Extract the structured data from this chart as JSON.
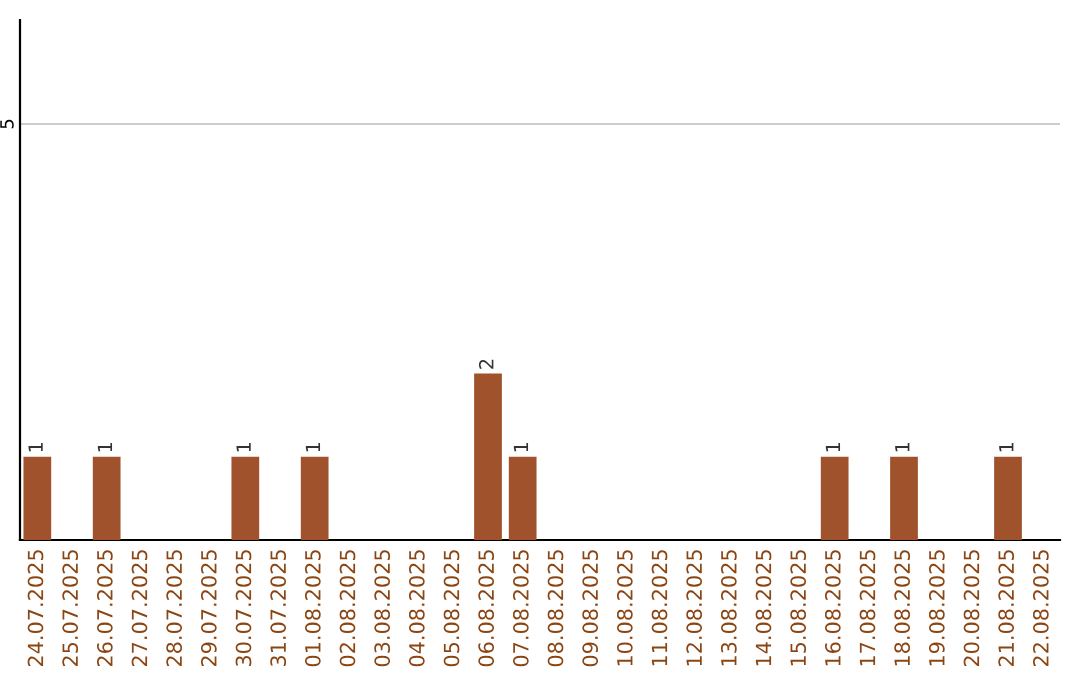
{
  "chart_data": {
    "type": "bar",
    "categories": [
      "24.07.2025",
      "25.07.2025",
      "26.07.2025",
      "27.07.2025",
      "28.07.2025",
      "29.07.2025",
      "30.07.2025",
      "31.07.2025",
      "01.08.2025",
      "02.08.2025",
      "03.08.2025",
      "04.08.2025",
      "05.08.2025",
      "06.08.2025",
      "07.08.2025",
      "08.08.2025",
      "09.08.2025",
      "10.08.2025",
      "11.08.2025",
      "12.08.2025",
      "13.08.2025",
      "14.08.2025",
      "15.08.2025",
      "16.08.2025",
      "17.08.2025",
      "18.08.2025",
      "19.08.2025",
      "20.08.2025",
      "21.08.2025",
      "22.08.2025"
    ],
    "values": [
      1,
      0,
      1,
      0,
      0,
      0,
      1,
      0,
      1,
      0,
      0,
      0,
      0,
      2,
      1,
      0,
      0,
      0,
      0,
      0,
      0,
      0,
      0,
      1,
      0,
      1,
      0,
      0,
      1,
      0
    ],
    "value_labels": [
      "1",
      null,
      "1",
      null,
      null,
      null,
      "1",
      null,
      "1",
      null,
      null,
      null,
      null,
      "2",
      "1",
      null,
      null,
      null,
      null,
      null,
      null,
      null,
      null,
      "1",
      null,
      "1",
      null,
      null,
      "1",
      null
    ],
    "color": "#a0522d",
    "ylim": [
      0,
      6.25
    ],
    "yticks": [
      5
    ],
    "grid": "y"
  }
}
